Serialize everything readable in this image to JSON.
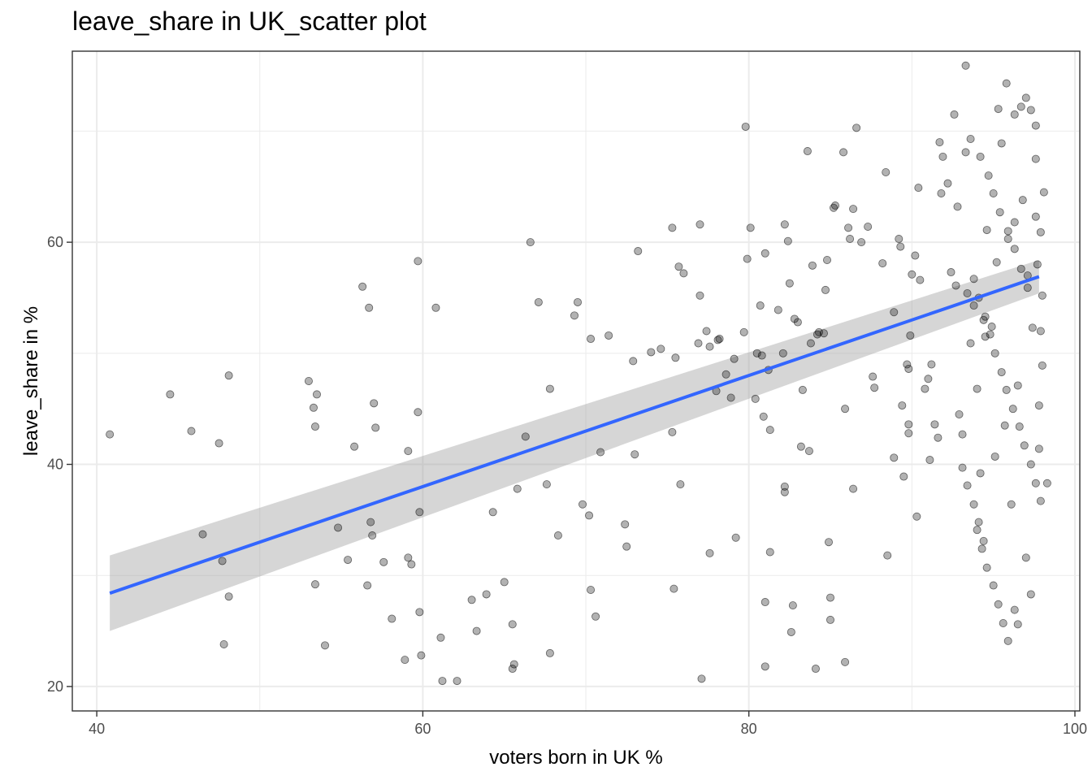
{
  "chart_data": {
    "type": "scatter",
    "title": "leave_share in UK_scatter plot",
    "xlabel": "voters born in UK %",
    "ylabel": "leave_share in %",
    "xlim": [
      38.5,
      100.3
    ],
    "ylim": [
      17.8,
      77.2
    ],
    "x_ticks": [
      40,
      60,
      80,
      100
    ],
    "y_ticks": [
      20,
      40,
      60
    ],
    "x_tick_labels": [
      "40",
      "60",
      "80",
      "100"
    ],
    "y_tick_labels": [
      "20",
      "40",
      "60"
    ],
    "grid": true,
    "theme": "bw",
    "point_color": "#000000",
    "point_alpha": 0.3,
    "fit_line": {
      "type": "linear",
      "color": "#3366FF",
      "ci_band_color": "#999999",
      "ci_band_alpha": 0.4
    },
    "trend": {
      "x": [
        40.8,
        97.8
      ],
      "y": [
        28.4,
        56.9
      ],
      "lower": [
        25.0,
        55.4
      ],
      "upper": [
        31.8,
        58.4
      ]
    },
    "points": [
      [
        40.8,
        42.7
      ],
      [
        44.5,
        46.3
      ],
      [
        45.8,
        43.0
      ],
      [
        46.5,
        33.7
      ],
      [
        47.5,
        41.9
      ],
      [
        47.7,
        31.3
      ],
      [
        47.8,
        23.8
      ],
      [
        48.1,
        28.1
      ],
      [
        48.1,
        48.0
      ],
      [
        53.0,
        47.5
      ],
      [
        53.3,
        45.1
      ],
      [
        53.4,
        43.4
      ],
      [
        53.5,
        46.3
      ],
      [
        53.4,
        29.2
      ],
      [
        54.0,
        23.7
      ],
      [
        54.8,
        34.3
      ],
      [
        55.4,
        31.4
      ],
      [
        55.8,
        41.6
      ],
      [
        56.3,
        56.0
      ],
      [
        56.6,
        29.1
      ],
      [
        56.7,
        54.1
      ],
      [
        56.8,
        34.8
      ],
      [
        56.9,
        33.6
      ],
      [
        57.0,
        45.5
      ],
      [
        57.1,
        43.3
      ],
      [
        57.6,
        31.2
      ],
      [
        58.1,
        26.1
      ],
      [
        58.9,
        22.4
      ],
      [
        59.1,
        31.6
      ],
      [
        59.1,
        41.2
      ],
      [
        59.3,
        31.0
      ],
      [
        59.7,
        58.3
      ],
      [
        59.7,
        44.7
      ],
      [
        59.8,
        35.7
      ],
      [
        59.8,
        26.7
      ],
      [
        59.9,
        22.8
      ],
      [
        60.8,
        54.1
      ],
      [
        61.1,
        24.4
      ],
      [
        61.2,
        20.5
      ],
      [
        62.1,
        20.5
      ],
      [
        63.0,
        27.8
      ],
      [
        63.3,
        25.0
      ],
      [
        63.9,
        28.3
      ],
      [
        64.3,
        35.7
      ],
      [
        65.0,
        29.4
      ],
      [
        65.5,
        21.6
      ],
      [
        65.5,
        25.6
      ],
      [
        65.6,
        22.0
      ],
      [
        65.8,
        37.8
      ],
      [
        66.3,
        42.5
      ],
      [
        66.6,
        60.0
      ],
      [
        67.1,
        54.6
      ],
      [
        67.6,
        38.2
      ],
      [
        67.8,
        46.8
      ],
      [
        67.8,
        23.0
      ],
      [
        68.3,
        33.6
      ],
      [
        69.3,
        53.4
      ],
      [
        69.5,
        54.6
      ],
      [
        69.8,
        36.4
      ],
      [
        70.2,
        35.4
      ],
      [
        70.3,
        51.3
      ],
      [
        70.3,
        28.7
      ],
      [
        70.6,
        26.3
      ],
      [
        70.9,
        41.1
      ],
      [
        71.4,
        51.6
      ],
      [
        72.4,
        34.6
      ],
      [
        72.5,
        32.6
      ],
      [
        72.9,
        49.3
      ],
      [
        73.0,
        40.9
      ],
      [
        73.2,
        59.2
      ],
      [
        74.0,
        50.1
      ],
      [
        74.6,
        50.4
      ],
      [
        75.3,
        61.3
      ],
      [
        75.3,
        42.9
      ],
      [
        75.4,
        28.8
      ],
      [
        75.5,
        49.6
      ],
      [
        75.7,
        57.8
      ],
      [
        75.8,
        38.2
      ],
      [
        76.0,
        57.2
      ],
      [
        76.9,
        50.9
      ],
      [
        77.0,
        61.6
      ],
      [
        77.0,
        55.2
      ],
      [
        77.1,
        20.7
      ],
      [
        77.4,
        52.0
      ],
      [
        77.6,
        50.6
      ],
      [
        77.6,
        32.0
      ],
      [
        78.0,
        46.6
      ],
      [
        78.1,
        51.2
      ],
      [
        78.2,
        51.3
      ],
      [
        78.6,
        48.1
      ],
      [
        78.9,
        46.0
      ],
      [
        79.1,
        49.5
      ],
      [
        79.2,
        33.4
      ],
      [
        79.7,
        51.9
      ],
      [
        79.8,
        70.4
      ],
      [
        79.9,
        58.5
      ],
      [
        80.1,
        61.3
      ],
      [
        80.4,
        45.9
      ],
      [
        80.5,
        50.0
      ],
      [
        80.7,
        54.3
      ],
      [
        80.8,
        49.8
      ],
      [
        80.9,
        44.3
      ],
      [
        81.0,
        59.0
      ],
      [
        81.0,
        27.6
      ],
      [
        81.0,
        21.8
      ],
      [
        81.2,
        48.5
      ],
      [
        81.3,
        43.1
      ],
      [
        81.3,
        32.1
      ],
      [
        81.8,
        53.9
      ],
      [
        82.1,
        50.0
      ],
      [
        82.2,
        38.0
      ],
      [
        82.2,
        37.5
      ],
      [
        82.2,
        61.6
      ],
      [
        82.4,
        60.1
      ],
      [
        82.5,
        56.3
      ],
      [
        82.6,
        24.9
      ],
      [
        82.7,
        27.3
      ],
      [
        82.8,
        53.1
      ],
      [
        83.0,
        52.8
      ],
      [
        83.2,
        41.6
      ],
      [
        83.3,
        46.7
      ],
      [
        83.6,
        68.2
      ],
      [
        83.7,
        41.2
      ],
      [
        83.8,
        50.9
      ],
      [
        83.9,
        57.9
      ],
      [
        84.1,
        21.6
      ],
      [
        84.2,
        51.7
      ],
      [
        84.3,
        51.9
      ],
      [
        84.6,
        51.8
      ],
      [
        84.7,
        55.7
      ],
      [
        84.8,
        58.4
      ],
      [
        84.9,
        33.0
      ],
      [
        85.0,
        28.0
      ],
      [
        85.0,
        26.0
      ],
      [
        85.2,
        63.1
      ],
      [
        85.3,
        63.3
      ],
      [
        85.8,
        68.1
      ],
      [
        85.9,
        45.0
      ],
      [
        85.9,
        22.2
      ],
      [
        86.1,
        61.3
      ],
      [
        86.2,
        60.3
      ],
      [
        86.4,
        63.0
      ],
      [
        86.4,
        37.8
      ],
      [
        86.6,
        70.3
      ],
      [
        86.9,
        60.0
      ],
      [
        87.3,
        61.4
      ],
      [
        87.6,
        47.9
      ],
      [
        87.7,
        46.9
      ],
      [
        88.2,
        58.1
      ],
      [
        88.4,
        66.3
      ],
      [
        88.5,
        31.8
      ],
      [
        88.9,
        53.7
      ],
      [
        88.9,
        40.6
      ],
      [
        89.2,
        60.3
      ],
      [
        89.3,
        59.6
      ],
      [
        89.4,
        45.3
      ],
      [
        89.5,
        38.9
      ],
      [
        89.7,
        49.0
      ],
      [
        89.8,
        48.6
      ],
      [
        89.8,
        43.6
      ],
      [
        89.8,
        42.8
      ],
      [
        89.9,
        51.6
      ],
      [
        90.0,
        57.1
      ],
      [
        90.2,
        58.8
      ],
      [
        90.3,
        35.3
      ],
      [
        90.4,
        64.9
      ],
      [
        90.5,
        56.6
      ],
      [
        90.8,
        46.8
      ],
      [
        91.0,
        47.7
      ],
      [
        91.1,
        40.4
      ],
      [
        91.2,
        49.0
      ],
      [
        91.4,
        43.6
      ],
      [
        91.6,
        42.4
      ],
      [
        91.7,
        69.0
      ],
      [
        91.8,
        64.4
      ],
      [
        91.9,
        67.7
      ],
      [
        92.2,
        65.3
      ],
      [
        92.4,
        57.3
      ],
      [
        92.6,
        71.5
      ],
      [
        92.7,
        56.1
      ],
      [
        92.8,
        63.2
      ],
      [
        92.9,
        44.5
      ],
      [
        93.1,
        42.7
      ],
      [
        93.3,
        75.9
      ],
      [
        93.4,
        55.4
      ],
      [
        93.6,
        50.9
      ],
      [
        93.8,
        54.3
      ],
      [
        94.0,
        46.8
      ],
      [
        94.2,
        39.2
      ],
      [
        94.4,
        53.0
      ],
      [
        94.6,
        61.1
      ],
      [
        94.9,
        52.4
      ],
      [
        95.1,
        40.7
      ],
      [
        95.2,
        58.2
      ],
      [
        95.5,
        68.9
      ],
      [
        95.7,
        43.5
      ],
      [
        95.9,
        60.3
      ],
      [
        96.1,
        36.4
      ],
      [
        96.3,
        61.8
      ],
      [
        96.5,
        47.1
      ],
      [
        96.8,
        63.8
      ],
      [
        97.0,
        31.6
      ],
      [
        97.1,
        57.0
      ],
      [
        97.3,
        28.3
      ],
      [
        97.4,
        52.3
      ],
      [
        97.6,
        67.5
      ],
      [
        97.7,
        58.0
      ],
      [
        97.8,
        41.4
      ],
      [
        97.9,
        60.9
      ],
      [
        98.0,
        55.2
      ],
      [
        98.0,
        48.9
      ],
      [
        98.1,
        64.5
      ],
      [
        98.3,
        38.3
      ],
      [
        97.9,
        52.0
      ],
      [
        97.8,
        45.3
      ],
      [
        97.6,
        62.3
      ],
      [
        93.3,
        68.1
      ],
      [
        94.5,
        51.5
      ],
      [
        95.3,
        72.0
      ],
      [
        95.8,
        74.3
      ],
      [
        96.3,
        71.5
      ],
      [
        96.7,
        72.2
      ],
      [
        97.0,
        73.0
      ],
      [
        97.3,
        71.9
      ],
      [
        97.6,
        70.5
      ],
      [
        93.6,
        69.3
      ],
      [
        94.2,
        67.7
      ],
      [
        94.7,
        66.0
      ],
      [
        95.0,
        64.4
      ],
      [
        95.4,
        62.7
      ],
      [
        95.9,
        61.0
      ],
      [
        96.3,
        59.4
      ],
      [
        96.7,
        57.6
      ],
      [
        97.1,
        55.9
      ],
      [
        93.8,
        56.7
      ],
      [
        94.1,
        55.0
      ],
      [
        94.5,
        53.3
      ],
      [
        94.8,
        51.7
      ],
      [
        95.1,
        50.0
      ],
      [
        95.5,
        48.3
      ],
      [
        95.8,
        46.7
      ],
      [
        96.2,
        45.0
      ],
      [
        96.6,
        43.4
      ],
      [
        96.9,
        41.7
      ],
      [
        97.3,
        40.0
      ],
      [
        97.6,
        38.3
      ],
      [
        97.9,
        36.7
      ],
      [
        94.0,
        34.1
      ],
      [
        94.3,
        32.4
      ],
      [
        94.6,
        30.7
      ],
      [
        95.0,
        29.1
      ],
      [
        95.3,
        27.4
      ],
      [
        95.6,
        25.7
      ],
      [
        95.9,
        24.1
      ],
      [
        96.3,
        26.9
      ],
      [
        96.5,
        25.6
      ],
      [
        93.1,
        39.7
      ],
      [
        93.4,
        38.1
      ],
      [
        93.8,
        36.4
      ],
      [
        94.1,
        34.8
      ],
      [
        94.4,
        33.1
      ]
    ]
  }
}
